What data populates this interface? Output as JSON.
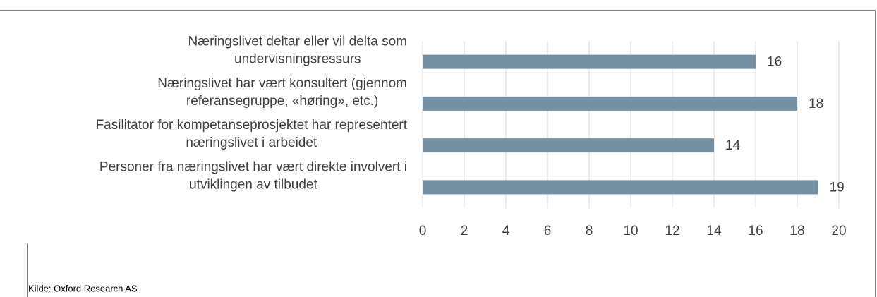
{
  "chart_data": {
    "type": "bar",
    "orientation": "horizontal",
    "categories": [
      [
        "Næringslivet deltar eller vil delta som",
        "undervisningsressurs"
      ],
      [
        "Næringslivet har vært konsultert (gjennom",
        "referansegruppe, «høring», etc.)"
      ],
      [
        "Fasilitator for kompetanseprosjektet har representert",
        "næringslivet i arbeidet"
      ],
      [
        "Personer fra næringslivet har vært direkte involvert i",
        "utviklingen av tilbudet"
      ]
    ],
    "values": [
      16,
      18,
      14,
      19
    ],
    "color": "#7590a3",
    "xlim": [
      0,
      20
    ],
    "xticks": [
      0,
      2,
      4,
      6,
      8,
      10,
      12,
      14,
      16,
      18,
      20
    ],
    "grid": true,
    "source": "Kilde: Oxford Research AS"
  }
}
